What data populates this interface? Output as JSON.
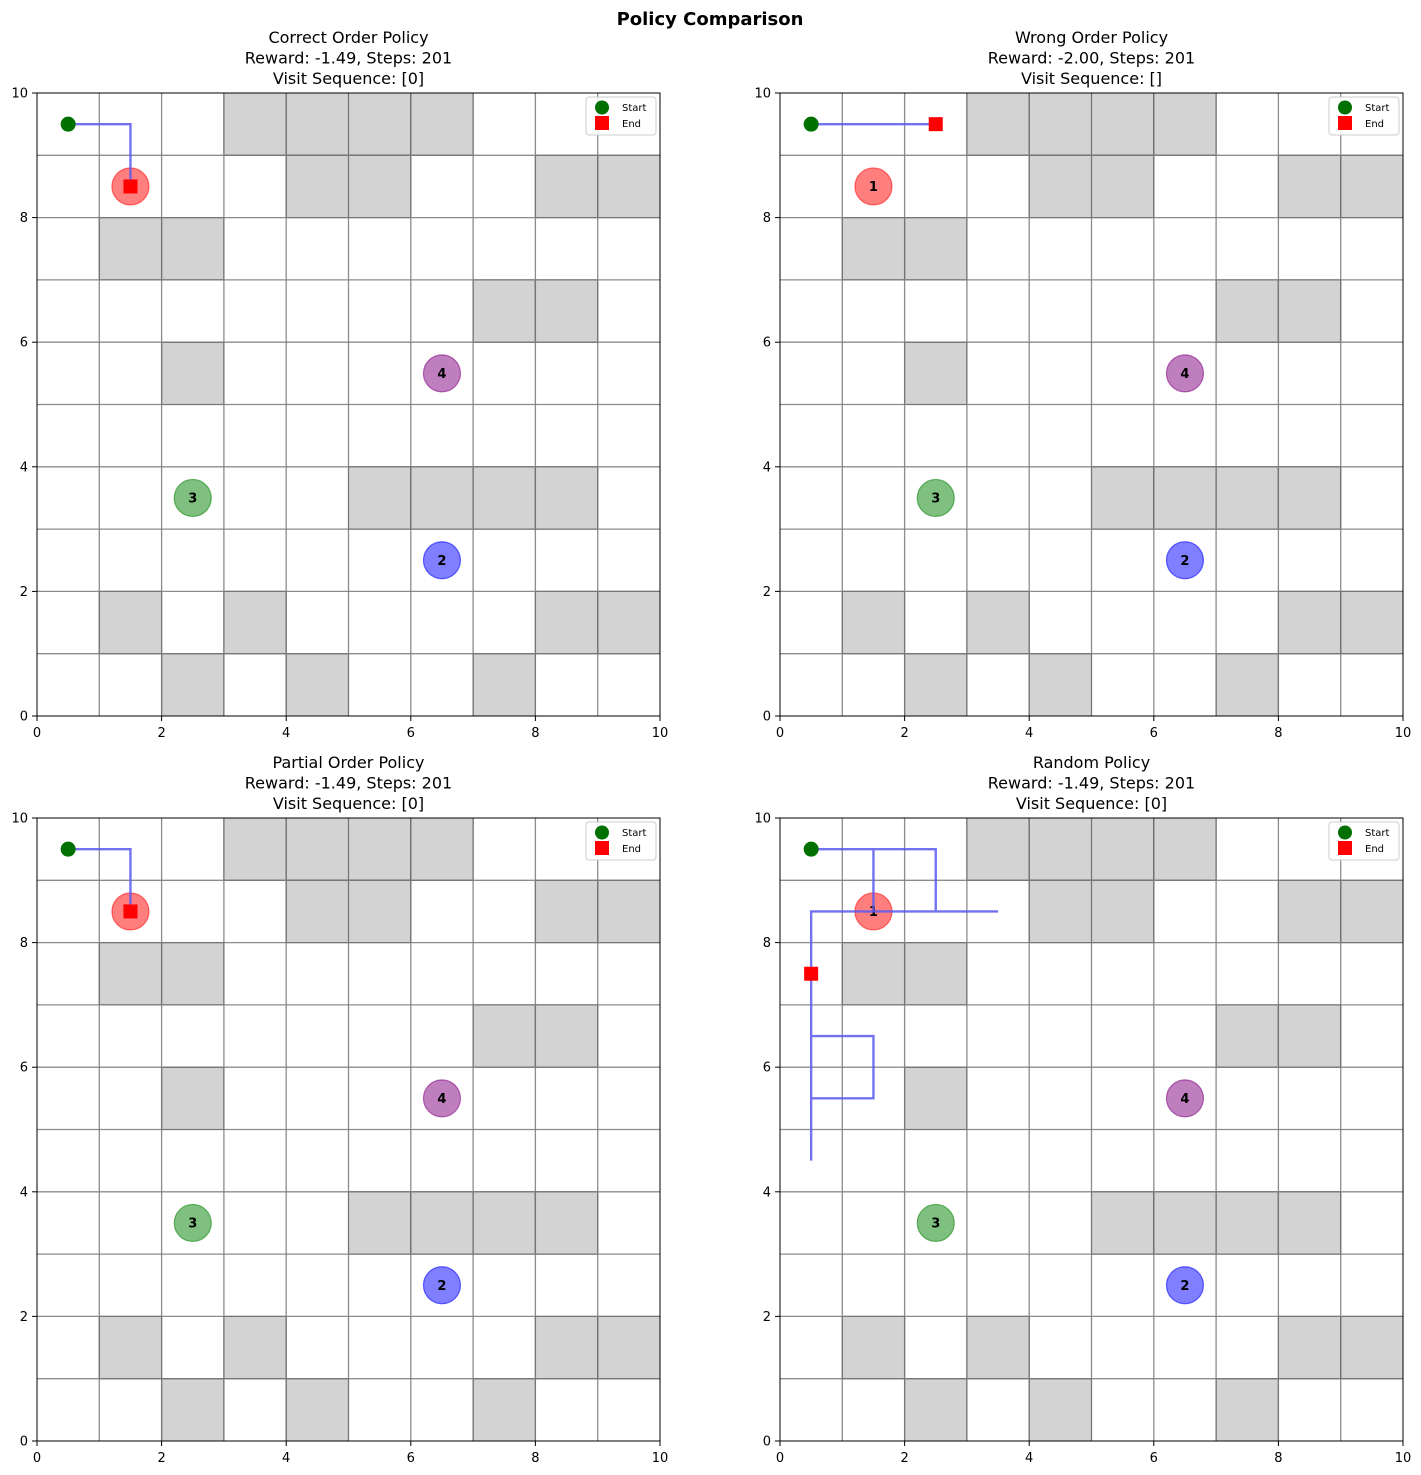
{
  "figure": {
    "suptitle": "Policy Comparison"
  },
  "legend": {
    "start_label": "Start",
    "end_label": "End"
  },
  "chart_data": [
    {
      "type": "line",
      "title_lines": [
        "Correct Order Policy",
        "Reward: -1.49, Steps: 201",
        "Visit Sequence: [0]"
      ],
      "path": [
        [
          0.5,
          9.5
        ],
        [
          1.5,
          9.5
        ],
        [
          1.5,
          8.5
        ]
      ],
      "start": [
        0.5,
        9.5
      ],
      "end": [
        1.5,
        8.5
      ]
    },
    {
      "type": "line",
      "title_lines": [
        "Wrong Order Policy",
        "Reward: -2.00, Steps: 201",
        "Visit Sequence: []"
      ],
      "path": [
        [
          0.5,
          9.5
        ],
        [
          2.5,
          9.5
        ]
      ],
      "start": [
        0.5,
        9.5
      ],
      "end": [
        2.5,
        9.5
      ]
    },
    {
      "type": "line",
      "title_lines": [
        "Partial Order Policy",
        "Reward: -1.49, Steps: 201",
        "Visit Sequence: [0]"
      ],
      "path": [
        [
          0.5,
          9.5
        ],
        [
          1.5,
          9.5
        ],
        [
          1.5,
          8.5
        ]
      ],
      "start": [
        0.5,
        9.5
      ],
      "end": [
        1.5,
        8.5
      ]
    },
    {
      "type": "line",
      "title_lines": [
        "Random Policy",
        "Reward: -1.49, Steps: 201",
        "Visit Sequence: [0]"
      ],
      "path": [
        [
          0.5,
          9.5
        ],
        [
          1.5,
          9.5
        ],
        [
          1.5,
          8.5
        ],
        [
          1.5,
          9.5
        ],
        [
          2.5,
          9.5
        ],
        [
          2.5,
          8.5
        ],
        [
          3.5,
          8.5
        ],
        [
          0.5,
          8.5
        ],
        [
          0.5,
          4.5
        ],
        [
          0.5,
          5.5
        ],
        [
          1.5,
          5.5
        ],
        [
          1.5,
          6.5
        ],
        [
          0.5,
          6.5
        ],
        [
          0.5,
          7.5
        ]
      ],
      "start": [
        0.5,
        9.5
      ],
      "end": [
        0.5,
        7.5
      ]
    }
  ],
  "grid": {
    "size": 10,
    "xlim": [
      0,
      10
    ],
    "ylim": [
      0,
      10
    ],
    "ticks": [
      0,
      2,
      4,
      6,
      8,
      10
    ],
    "obstacles": [
      [
        3,
        9
      ],
      [
        4,
        9
      ],
      [
        5,
        9
      ],
      [
        6,
        9
      ],
      [
        4,
        8
      ],
      [
        5,
        8
      ],
      [
        8,
        8
      ],
      [
        9,
        8
      ],
      [
        1,
        7
      ],
      [
        2,
        7
      ],
      [
        7,
        6
      ],
      [
        8,
        6
      ],
      [
        2,
        5
      ],
      [
        5,
        3
      ],
      [
        6,
        3
      ],
      [
        7,
        3
      ],
      [
        8,
        3
      ],
      [
        1,
        1
      ],
      [
        3,
        1
      ],
      [
        8,
        1
      ],
      [
        9,
        1
      ],
      [
        2,
        0
      ],
      [
        4,
        0
      ],
      [
        7,
        0
      ]
    ],
    "goals": [
      {
        "label": "1",
        "x": 1.5,
        "y": 8.5,
        "color": "#ff0000"
      },
      {
        "label": "2",
        "x": 6.5,
        "y": 2.5,
        "color": "#0000ff"
      },
      {
        "label": "3",
        "x": 2.5,
        "y": 3.5,
        "color": "#008000"
      },
      {
        "label": "4",
        "x": 6.5,
        "y": 5.5,
        "color": "#800080"
      }
    ]
  },
  "colors": {
    "obstacle": "#d3d3d3",
    "grid_line": "#808080",
    "path": "#5a5af0",
    "start": "#007000",
    "end": "#ff0000"
  }
}
